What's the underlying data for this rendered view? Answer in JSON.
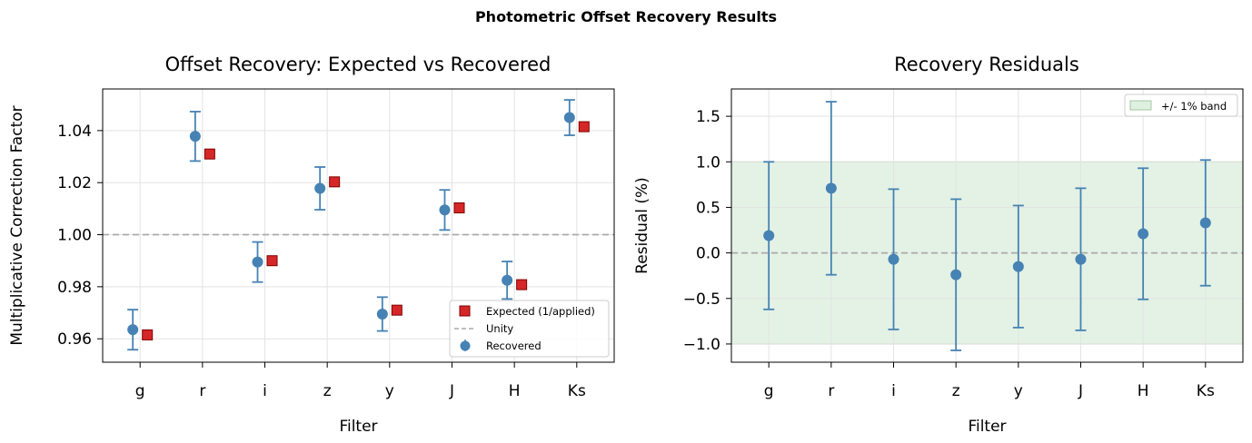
{
  "figure": {
    "suptitle": "Photometric Offset Recovery Results"
  },
  "colors": {
    "recovered": "#4682b4",
    "expected": "#d62728",
    "expected_edge": "#7f0000",
    "unity": "#aaaaaa",
    "band": "#c8e6c9"
  },
  "chart_data": [
    {
      "type": "scatter",
      "title": "Offset Recovery: Expected vs Recovered",
      "xlabel": "Filter",
      "ylabel": "Multiplicative Correction Factor",
      "categories": [
        "g",
        "r",
        "i",
        "z",
        "y",
        "J",
        "H",
        "Ks"
      ],
      "ylim": [
        0.951,
        1.056
      ],
      "yticks": [
        "0.96",
        "0.98",
        "1.00",
        "1.02",
        "1.04"
      ],
      "grid": true,
      "legend_position": "lower-right",
      "reference_line": {
        "label": "Unity",
        "y": 1.0
      },
      "series": [
        {
          "name": "Recovered",
          "marker": "circle",
          "values": [
            0.9635,
            1.0378,
            0.9895,
            1.0178,
            0.9695,
            1.0095,
            0.9825,
            1.045
          ],
          "yerr": [
            0.0077,
            0.0095,
            0.0077,
            0.0082,
            0.0065,
            0.0077,
            0.0072,
            0.0068
          ]
        },
        {
          "name": "Expected (1/applied)",
          "marker": "square",
          "values": [
            0.9615,
            1.031,
            0.99,
            1.0203,
            0.971,
            1.0103,
            0.9808,
            1.0415
          ]
        }
      ]
    },
    {
      "type": "scatter",
      "title": "Recovery Residuals",
      "xlabel": "Filter",
      "ylabel": "Residual (%)",
      "categories": [
        "g",
        "r",
        "i",
        "z",
        "y",
        "J",
        "H",
        "Ks"
      ],
      "ylim": [
        -1.2,
        1.8
      ],
      "yticks": [
        "−1.0",
        "−0.5",
        "0.0",
        "0.5",
        "1.0",
        "1.5"
      ],
      "grid": true,
      "legend_position": "upper-right",
      "band": {
        "label": "+/- 1% band",
        "lower": -1.0,
        "upper": 1.0
      },
      "series": [
        {
          "name": "Residual",
          "marker": "circle",
          "values": [
            0.19,
            0.71,
            -0.07,
            -0.24,
            -0.15,
            -0.07,
            0.21,
            0.33
          ],
          "yerr": [
            0.81,
            0.95,
            0.77,
            0.83,
            0.67,
            0.78,
            0.72,
            0.69
          ]
        }
      ]
    }
  ]
}
